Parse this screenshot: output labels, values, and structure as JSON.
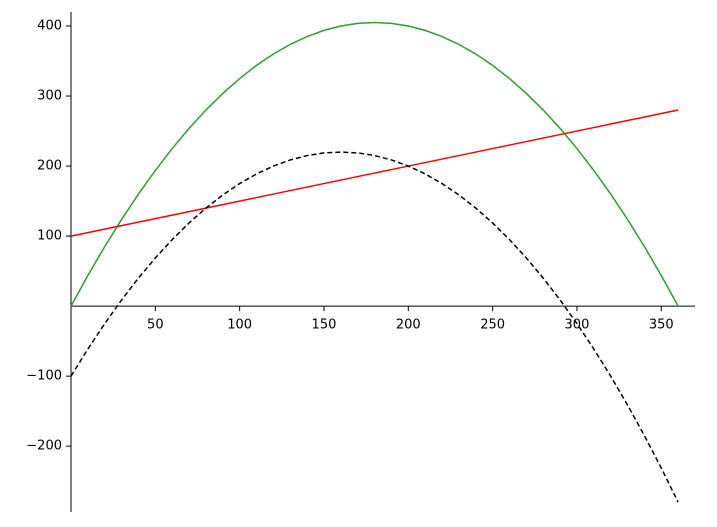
{
  "chart_data": {
    "type": "line",
    "x": [
      0,
      10,
      20,
      30,
      40,
      50,
      60,
      70,
      80,
      90,
      100,
      110,
      120,
      130,
      140,
      150,
      160,
      170,
      180,
      190,
      200,
      210,
      220,
      230,
      240,
      250,
      260,
      270,
      280,
      290,
      300,
      310,
      320,
      330,
      340,
      350,
      360
    ],
    "series": [
      {
        "color": "#2ca02c",
        "style": "solid",
        "values": [
          0,
          43.75,
          85,
          123.75,
          160,
          193.75,
          225,
          253.75,
          280,
          303.75,
          325,
          343.75,
          360,
          373.75,
          385,
          393.75,
          400,
          403.75,
          405,
          403.75,
          400,
          393.75,
          385,
          373.75,
          360,
          343.75,
          325,
          303.75,
          280,
          253.75,
          225,
          193.75,
          160,
          123.75,
          85,
          43.75,
          0
        ]
      },
      {
        "color": "#ff0000",
        "style": "solid",
        "values": [
          100,
          105,
          110,
          115,
          120,
          125,
          130,
          135,
          140,
          145,
          150,
          155,
          160,
          165,
          170,
          175,
          180,
          185,
          190,
          195,
          200,
          205,
          210,
          215,
          220,
          225,
          230,
          235,
          240,
          245,
          250,
          255,
          260,
          265,
          270,
          275,
          280
        ]
      },
      {
        "color": "#000000",
        "style": "dashed",
        "values": [
          -100,
          -61.25,
          -25,
          8.75,
          40,
          68.75,
          95,
          118.75,
          140,
          158.75,
          175,
          188.75,
          200,
          208.75,
          215,
          218.75,
          220,
          218.75,
          215,
          208.75,
          200,
          188.75,
          175,
          158.75,
          140,
          118.75,
          95,
          68.75,
          40,
          8.75,
          -25,
          -61.25,
          -100,
          -141.25,
          -185,
          -231.25,
          -280
        ]
      }
    ],
    "xlim": [
      0,
      370
    ],
    "ylim": [
      -294,
      420
    ],
    "xticks": [
      50,
      100,
      150,
      200,
      250,
      300,
      350
    ],
    "yticks": [
      {
        "value": -200,
        "label": "−200"
      },
      {
        "value": -100,
        "label": "−100"
      },
      100,
      200,
      300,
      400
    ]
  }
}
